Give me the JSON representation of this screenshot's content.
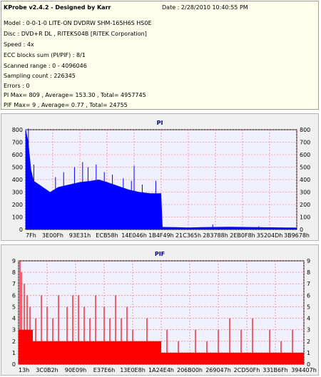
{
  "info": {
    "app_title": "KProbe v2.4.2 - Designed by Karr",
    "date": "Date : 2/28/2010 10:40:55 PM",
    "lines": [
      "Model : 0-0-1-0 LITE-ON DVDRW SHM-165H6S HS0E",
      "Disc : DVD+R DL , RITEKS04B [RiTEK Corporation]",
      "Speed : 4x",
      "ECC blocks sum (PI/PIF) : 8/1",
      "Scanned range : 0 - 4096046",
      "Sampling count : 226345",
      "Errors : 0",
      "PI Max= 809 , Average= 153.30 , Total= 4957745",
      "PIF Max= 9 , Average= 0.77 , Total= 24755"
    ]
  },
  "colors": {
    "pi_fill": "#0000ff",
    "pif_fill": "#ff0000",
    "plot_bg": "#f0f0ff",
    "title": "#00008b"
  },
  "chart_data": [
    {
      "type": "area",
      "title": "PI",
      "ylim": [
        0,
        800
      ],
      "yticks": [
        "0",
        "100",
        "200",
        "300",
        "400",
        "500",
        "600",
        "700",
        "800"
      ],
      "xticks": [
        "7Fh",
        "3E00Fh",
        "93E31h",
        "ECB58h",
        "14E046h",
        "1B4F49h",
        "21C365h",
        "283788h",
        "2EB0F8h",
        "35204Dh",
        "3B9678h"
      ],
      "envelope": [
        [
          0.0,
          809
        ],
        [
          0.01,
          700
        ],
        [
          0.02,
          480
        ],
        [
          0.03,
          390
        ],
        [
          0.05,
          360
        ],
        [
          0.07,
          330
        ],
        [
          0.09,
          300
        ],
        [
          0.12,
          340
        ],
        [
          0.16,
          360
        ],
        [
          0.2,
          380
        ],
        [
          0.24,
          390
        ],
        [
          0.27,
          400
        ],
        [
          0.3,
          380
        ],
        [
          0.34,
          350
        ],
        [
          0.38,
          320
        ],
        [
          0.42,
          300
        ],
        [
          0.46,
          290
        ],
        [
          0.5,
          290
        ],
        [
          0.505,
          20
        ],
        [
          0.55,
          18
        ],
        [
          0.6,
          16
        ],
        [
          0.65,
          18
        ],
        [
          0.7,
          20
        ],
        [
          0.75,
          22
        ],
        [
          0.8,
          20
        ],
        [
          0.85,
          18
        ],
        [
          0.9,
          17
        ],
        [
          0.95,
          16
        ],
        [
          1.0,
          15
        ]
      ],
      "spikes": [
        [
          0.01,
          809
        ],
        [
          0.03,
          520
        ],
        [
          0.11,
          420
        ],
        [
          0.14,
          460
        ],
        [
          0.18,
          500
        ],
        [
          0.21,
          540
        ],
        [
          0.23,
          500
        ],
        [
          0.26,
          520
        ],
        [
          0.29,
          460
        ],
        [
          0.32,
          440
        ],
        [
          0.36,
          410
        ],
        [
          0.39,
          390
        ],
        [
          0.4,
          510
        ],
        [
          0.43,
          360
        ],
        [
          0.48,
          390
        ],
        [
          0.69,
          40
        ],
        [
          0.86,
          25
        ]
      ]
    },
    {
      "type": "bar",
      "title": "PIF",
      "ylim": [
        0,
        9
      ],
      "yticks": [
        "0",
        "1",
        "2",
        "3",
        "4",
        "5",
        "6",
        "7",
        "8",
        "9"
      ],
      "xticks": [
        "13h",
        "3C0B2h",
        "90E09h",
        "E37E6h",
        "13E0E8h",
        "1A24E4h",
        "206B00h",
        "269047h",
        "2CD50Fh",
        "331B6Fh",
        "394407h"
      ],
      "levels": [
        [
          0.0,
          0.05,
          3
        ],
        [
          0.05,
          0.2,
          2
        ],
        [
          0.2,
          0.5,
          2
        ],
        [
          0.5,
          0.7,
          1
        ],
        [
          0.7,
          1.0,
          1
        ]
      ],
      "spikes": [
        [
          0.005,
          9
        ],
        [
          0.01,
          8
        ],
        [
          0.02,
          7
        ],
        [
          0.03,
          6
        ],
        [
          0.04,
          5
        ],
        [
          0.06,
          4
        ],
        [
          0.08,
          6
        ],
        [
          0.1,
          5
        ],
        [
          0.12,
          4
        ],
        [
          0.14,
          6
        ],
        [
          0.17,
          5
        ],
        [
          0.19,
          6
        ],
        [
          0.21,
          6
        ],
        [
          0.23,
          5
        ],
        [
          0.25,
          4
        ],
        [
          0.27,
          6
        ],
        [
          0.3,
          5
        ],
        [
          0.32,
          4
        ],
        [
          0.34,
          6
        ],
        [
          0.36,
          4
        ],
        [
          0.38,
          5
        ],
        [
          0.4,
          3
        ],
        [
          0.45,
          4
        ],
        [
          0.52,
          3
        ],
        [
          0.56,
          2
        ],
        [
          0.62,
          3
        ],
        [
          0.66,
          2
        ],
        [
          0.7,
          3
        ],
        [
          0.74,
          4
        ],
        [
          0.78,
          3
        ],
        [
          0.82,
          4
        ],
        [
          0.88,
          3
        ],
        [
          0.92,
          2
        ],
        [
          0.96,
          3
        ]
      ]
    }
  ]
}
